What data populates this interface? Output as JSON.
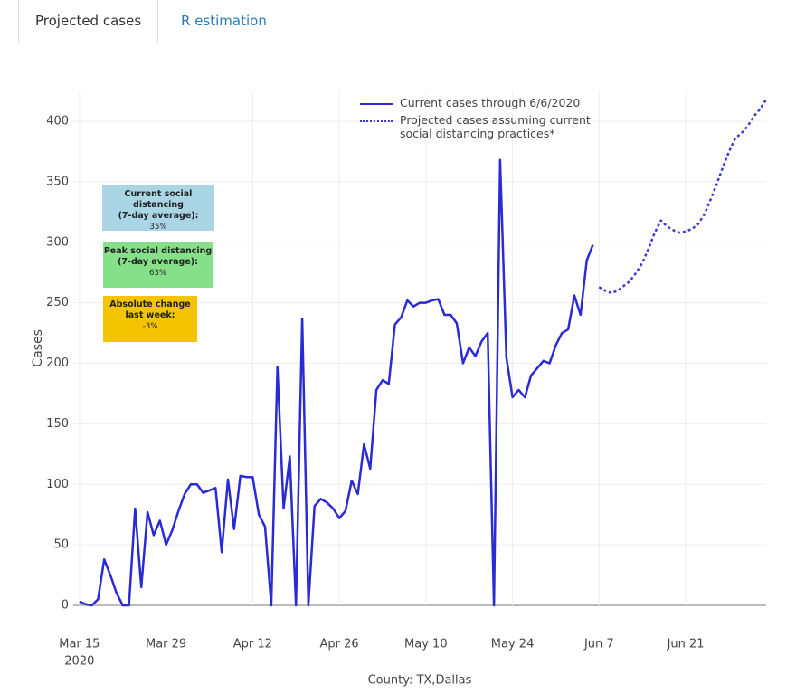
{
  "tabs": [
    "Projected cases",
    "R estimation"
  ],
  "chart_data": {
    "type": "line",
    "ylabel": "Cases",
    "xlabel": "County: TX,Dallas",
    "ylim": [
      0,
      425
    ],
    "yticks": [
      0,
      50,
      100,
      150,
      200,
      250,
      300,
      350,
      400
    ],
    "xlim": [
      "2020-03-14",
      "2020-07-04"
    ],
    "xticks": [
      {
        "value": "2020-03-15",
        "label": "Mar 15"
      },
      {
        "value": "2020-03-29",
        "label": "Mar 29"
      },
      {
        "value": "2020-04-12",
        "label": "Apr 12"
      },
      {
        "value": "2020-04-26",
        "label": "Apr 26"
      },
      {
        "value": "2020-05-10",
        "label": "May 10"
      },
      {
        "value": "2020-05-24",
        "label": "May 24"
      },
      {
        "value": "2020-06-07",
        "label": "Jun 7"
      },
      {
        "value": "2020-06-21",
        "label": "Jun 21"
      }
    ],
    "xtick_year": "2020",
    "grid": true,
    "legend": "top",
    "annotations": [
      {
        "lines": [
          "Current social distancing",
          "(7-day average):",
          "35%"
        ],
        "color": "#a9d5e5"
      },
      {
        "lines": [
          "Peak social distancing",
          "(7-day average):",
          "63%"
        ],
        "color": "#86e08a"
      },
      {
        "lines": [
          "Absolute change",
          "last week:",
          "-3%"
        ],
        "color": "#f5c400"
      }
    ],
    "series": [
      {
        "name": "Current cases through 6/6/2020",
        "color": "#2b2bd6",
        "style": "solid",
        "x": [
          "2020-03-15",
          "2020-03-16",
          "2020-03-17",
          "2020-03-18",
          "2020-03-19",
          "2020-03-20",
          "2020-03-21",
          "2020-03-22",
          "2020-03-23",
          "2020-03-24",
          "2020-03-25",
          "2020-03-26",
          "2020-03-27",
          "2020-03-28",
          "2020-03-29",
          "2020-03-30",
          "2020-03-31",
          "2020-04-01",
          "2020-04-02",
          "2020-04-03",
          "2020-04-04",
          "2020-04-05",
          "2020-04-06",
          "2020-04-07",
          "2020-04-08",
          "2020-04-09",
          "2020-04-10",
          "2020-04-11",
          "2020-04-12",
          "2020-04-13",
          "2020-04-14",
          "2020-04-15",
          "2020-04-16",
          "2020-04-17",
          "2020-04-18",
          "2020-04-19",
          "2020-04-20",
          "2020-04-21",
          "2020-04-22",
          "2020-04-23",
          "2020-04-24",
          "2020-04-25",
          "2020-04-26",
          "2020-04-27",
          "2020-04-28",
          "2020-04-29",
          "2020-04-30",
          "2020-05-01",
          "2020-05-02",
          "2020-05-03",
          "2020-05-04",
          "2020-05-05",
          "2020-05-06",
          "2020-05-07",
          "2020-05-08",
          "2020-05-09",
          "2020-05-10",
          "2020-05-11",
          "2020-05-12",
          "2020-05-13",
          "2020-05-14",
          "2020-05-15",
          "2020-05-16",
          "2020-05-17",
          "2020-05-18",
          "2020-05-19",
          "2020-05-20",
          "2020-05-21",
          "2020-05-22",
          "2020-05-23",
          "2020-05-24",
          "2020-05-25",
          "2020-05-26",
          "2020-05-27",
          "2020-05-28",
          "2020-05-29",
          "2020-05-30",
          "2020-05-31",
          "2020-06-01",
          "2020-06-02",
          "2020-06-03",
          "2020-06-04",
          "2020-06-05",
          "2020-06-06"
        ],
        "values": [
          3,
          1,
          0,
          5,
          38,
          25,
          10,
          0,
          0,
          80,
          15,
          77,
          58,
          70,
          50,
          62,
          78,
          92,
          100,
          100,
          93,
          95,
          97,
          44,
          104,
          63,
          107,
          106,
          106,
          75,
          65,
          0,
          197,
          80,
          123,
          0,
          237,
          0,
          82,
          88,
          85,
          80,
          72,
          78,
          103,
          92,
          133,
          113,
          178,
          186,
          183,
          232,
          238,
          252,
          247,
          250,
          250,
          252,
          253,
          240,
          240,
          233,
          200,
          213,
          206,
          218,
          225,
          0,
          368,
          205,
          172,
          178,
          172,
          190,
          196,
          202,
          200,
          215,
          225,
          228,
          256,
          240,
          285,
          298
        ]
      },
      {
        "name": "Projected cases assuming current social distancing practices*",
        "color": "#3a3ad6",
        "style": "dotted",
        "x": [
          "2020-06-07",
          "2020-06-08",
          "2020-06-09",
          "2020-06-10",
          "2020-06-11",
          "2020-06-12",
          "2020-06-13",
          "2020-06-14",
          "2020-06-15",
          "2020-06-16",
          "2020-06-17",
          "2020-06-18",
          "2020-06-19",
          "2020-06-20",
          "2020-06-21",
          "2020-06-22",
          "2020-06-23",
          "2020-06-24",
          "2020-06-25",
          "2020-06-26",
          "2020-06-27",
          "2020-06-28",
          "2020-06-29",
          "2020-06-30",
          "2020-07-01",
          "2020-07-02",
          "2020-07-03",
          "2020-07-04"
        ],
        "values": [
          263,
          260,
          258,
          260,
          264,
          268,
          275,
          283,
          295,
          308,
          318,
          313,
          310,
          308,
          309,
          311,
          315,
          323,
          335,
          348,
          362,
          375,
          386,
          390,
          396,
          404,
          410,
          418
        ]
      }
    ]
  }
}
